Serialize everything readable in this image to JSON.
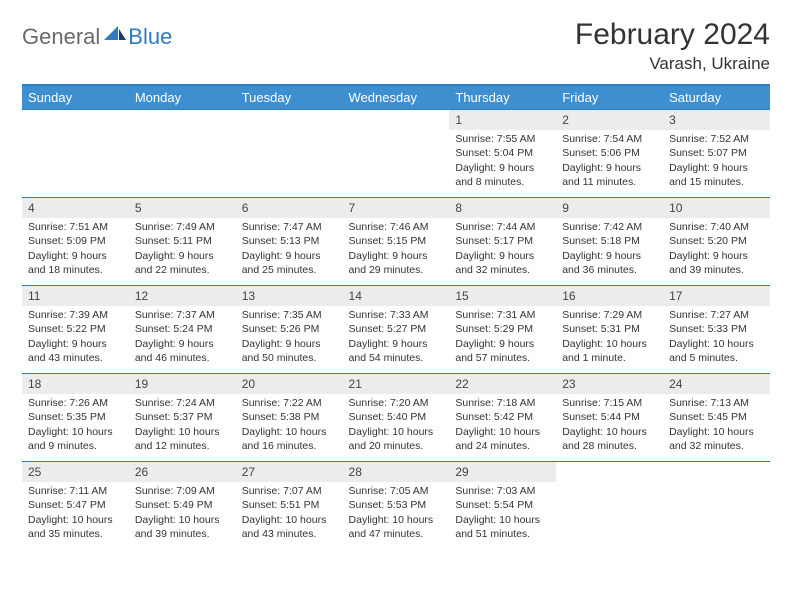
{
  "logo": {
    "part1": "General",
    "part2": "Blue"
  },
  "title": "February 2024",
  "location": "Varash, Ukraine",
  "colors": {
    "header_bg": "#3d8fcf",
    "header_text": "#ffffff",
    "border": "#2f7bbf",
    "daynum_bg": "#ececec",
    "body_text": "#333333",
    "logo_gray": "#6a6a6a",
    "logo_blue": "#2f7bbf"
  },
  "fonts": {
    "title_size": 30,
    "location_size": 17,
    "dayhdr_size": 13,
    "cell_size": 10.5
  },
  "dayHeaders": [
    "Sunday",
    "Monday",
    "Tuesday",
    "Wednesday",
    "Thursday",
    "Friday",
    "Saturday"
  ],
  "weeks": [
    [
      {
        "n": "",
        "sr": "",
        "ss": "",
        "dl": ""
      },
      {
        "n": "",
        "sr": "",
        "ss": "",
        "dl": ""
      },
      {
        "n": "",
        "sr": "",
        "ss": "",
        "dl": ""
      },
      {
        "n": "",
        "sr": "",
        "ss": "",
        "dl": ""
      },
      {
        "n": "1",
        "sr": "Sunrise: 7:55 AM",
        "ss": "Sunset: 5:04 PM",
        "dl": "Daylight: 9 hours and 8 minutes."
      },
      {
        "n": "2",
        "sr": "Sunrise: 7:54 AM",
        "ss": "Sunset: 5:06 PM",
        "dl": "Daylight: 9 hours and 11 minutes."
      },
      {
        "n": "3",
        "sr": "Sunrise: 7:52 AM",
        "ss": "Sunset: 5:07 PM",
        "dl": "Daylight: 9 hours and 15 minutes."
      }
    ],
    [
      {
        "n": "4",
        "sr": "Sunrise: 7:51 AM",
        "ss": "Sunset: 5:09 PM",
        "dl": "Daylight: 9 hours and 18 minutes."
      },
      {
        "n": "5",
        "sr": "Sunrise: 7:49 AM",
        "ss": "Sunset: 5:11 PM",
        "dl": "Daylight: 9 hours and 22 minutes."
      },
      {
        "n": "6",
        "sr": "Sunrise: 7:47 AM",
        "ss": "Sunset: 5:13 PM",
        "dl": "Daylight: 9 hours and 25 minutes."
      },
      {
        "n": "7",
        "sr": "Sunrise: 7:46 AM",
        "ss": "Sunset: 5:15 PM",
        "dl": "Daylight: 9 hours and 29 minutes."
      },
      {
        "n": "8",
        "sr": "Sunrise: 7:44 AM",
        "ss": "Sunset: 5:17 PM",
        "dl": "Daylight: 9 hours and 32 minutes."
      },
      {
        "n": "9",
        "sr": "Sunrise: 7:42 AM",
        "ss": "Sunset: 5:18 PM",
        "dl": "Daylight: 9 hours and 36 minutes."
      },
      {
        "n": "10",
        "sr": "Sunrise: 7:40 AM",
        "ss": "Sunset: 5:20 PM",
        "dl": "Daylight: 9 hours and 39 minutes."
      }
    ],
    [
      {
        "n": "11",
        "sr": "Sunrise: 7:39 AM",
        "ss": "Sunset: 5:22 PM",
        "dl": "Daylight: 9 hours and 43 minutes."
      },
      {
        "n": "12",
        "sr": "Sunrise: 7:37 AM",
        "ss": "Sunset: 5:24 PM",
        "dl": "Daylight: 9 hours and 46 minutes."
      },
      {
        "n": "13",
        "sr": "Sunrise: 7:35 AM",
        "ss": "Sunset: 5:26 PM",
        "dl": "Daylight: 9 hours and 50 minutes."
      },
      {
        "n": "14",
        "sr": "Sunrise: 7:33 AM",
        "ss": "Sunset: 5:27 PM",
        "dl": "Daylight: 9 hours and 54 minutes."
      },
      {
        "n": "15",
        "sr": "Sunrise: 7:31 AM",
        "ss": "Sunset: 5:29 PM",
        "dl": "Daylight: 9 hours and 57 minutes."
      },
      {
        "n": "16",
        "sr": "Sunrise: 7:29 AM",
        "ss": "Sunset: 5:31 PM",
        "dl": "Daylight: 10 hours and 1 minute."
      },
      {
        "n": "17",
        "sr": "Sunrise: 7:27 AM",
        "ss": "Sunset: 5:33 PM",
        "dl": "Daylight: 10 hours and 5 minutes."
      }
    ],
    [
      {
        "n": "18",
        "sr": "Sunrise: 7:26 AM",
        "ss": "Sunset: 5:35 PM",
        "dl": "Daylight: 10 hours and 9 minutes."
      },
      {
        "n": "19",
        "sr": "Sunrise: 7:24 AM",
        "ss": "Sunset: 5:37 PM",
        "dl": "Daylight: 10 hours and 12 minutes."
      },
      {
        "n": "20",
        "sr": "Sunrise: 7:22 AM",
        "ss": "Sunset: 5:38 PM",
        "dl": "Daylight: 10 hours and 16 minutes."
      },
      {
        "n": "21",
        "sr": "Sunrise: 7:20 AM",
        "ss": "Sunset: 5:40 PM",
        "dl": "Daylight: 10 hours and 20 minutes."
      },
      {
        "n": "22",
        "sr": "Sunrise: 7:18 AM",
        "ss": "Sunset: 5:42 PM",
        "dl": "Daylight: 10 hours and 24 minutes."
      },
      {
        "n": "23",
        "sr": "Sunrise: 7:15 AM",
        "ss": "Sunset: 5:44 PM",
        "dl": "Daylight: 10 hours and 28 minutes."
      },
      {
        "n": "24",
        "sr": "Sunrise: 7:13 AM",
        "ss": "Sunset: 5:45 PM",
        "dl": "Daylight: 10 hours and 32 minutes."
      }
    ],
    [
      {
        "n": "25",
        "sr": "Sunrise: 7:11 AM",
        "ss": "Sunset: 5:47 PM",
        "dl": "Daylight: 10 hours and 35 minutes."
      },
      {
        "n": "26",
        "sr": "Sunrise: 7:09 AM",
        "ss": "Sunset: 5:49 PM",
        "dl": "Daylight: 10 hours and 39 minutes."
      },
      {
        "n": "27",
        "sr": "Sunrise: 7:07 AM",
        "ss": "Sunset: 5:51 PM",
        "dl": "Daylight: 10 hours and 43 minutes."
      },
      {
        "n": "28",
        "sr": "Sunrise: 7:05 AM",
        "ss": "Sunset: 5:53 PM",
        "dl": "Daylight: 10 hours and 47 minutes."
      },
      {
        "n": "29",
        "sr": "Sunrise: 7:03 AM",
        "ss": "Sunset: 5:54 PM",
        "dl": "Daylight: 10 hours and 51 minutes."
      },
      {
        "n": "",
        "sr": "",
        "ss": "",
        "dl": ""
      },
      {
        "n": "",
        "sr": "",
        "ss": "",
        "dl": ""
      }
    ]
  ]
}
